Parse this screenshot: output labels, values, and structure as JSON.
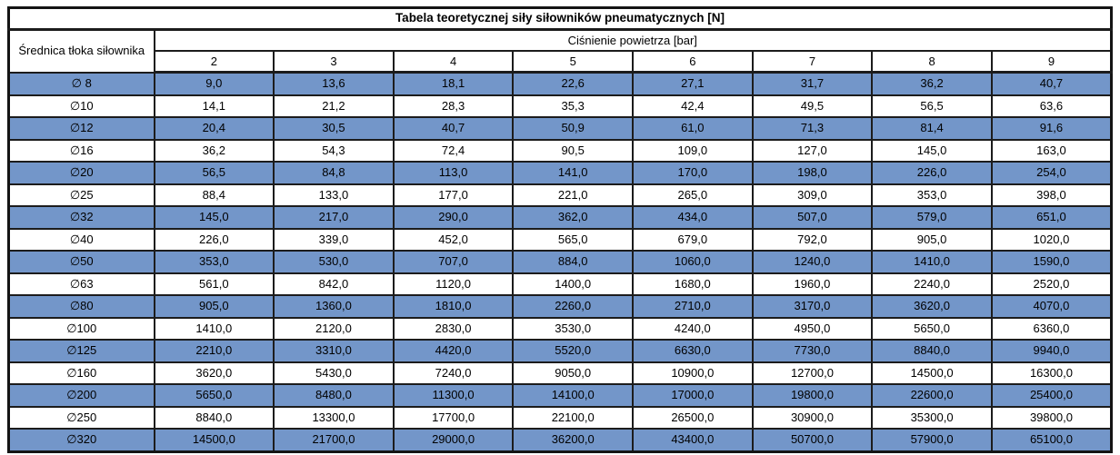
{
  "table": {
    "title": "Tabela teoretycznej siły siłowników pneumatycznych [N]",
    "row_header": "Średnica tłoka siłownika",
    "col_group_header": "Ciśnienie powietrza [bar]",
    "pressure_columns": [
      "2",
      "3",
      "4",
      "5",
      "6",
      "7",
      "8",
      "9"
    ],
    "rows": [
      {
        "diameter": "∅ 8",
        "highlight": true,
        "values": [
          "9,0",
          "13,6",
          "18,1",
          "22,6",
          "27,1",
          "31,7",
          "36,2",
          "40,7"
        ]
      },
      {
        "diameter": "∅10",
        "highlight": false,
        "values": [
          "14,1",
          "21,2",
          "28,3",
          "35,3",
          "42,4",
          "49,5",
          "56,5",
          "63,6"
        ]
      },
      {
        "diameter": "∅12",
        "highlight": true,
        "values": [
          "20,4",
          "30,5",
          "40,7",
          "50,9",
          "61,0",
          "71,3",
          "81,4",
          "91,6"
        ]
      },
      {
        "diameter": "∅16",
        "highlight": false,
        "values": [
          "36,2",
          "54,3",
          "72,4",
          "90,5",
          "109,0",
          "127,0",
          "145,0",
          "163,0"
        ]
      },
      {
        "diameter": "∅20",
        "highlight": true,
        "values": [
          "56,5",
          "84,8",
          "113,0",
          "141,0",
          "170,0",
          "198,0",
          "226,0",
          "254,0"
        ]
      },
      {
        "diameter": "∅25",
        "highlight": false,
        "values": [
          "88,4",
          "133,0",
          "177,0",
          "221,0",
          "265,0",
          "309,0",
          "353,0",
          "398,0"
        ]
      },
      {
        "diameter": "∅32",
        "highlight": true,
        "values": [
          "145,0",
          "217,0",
          "290,0",
          "362,0",
          "434,0",
          "507,0",
          "579,0",
          "651,0"
        ]
      },
      {
        "diameter": "∅40",
        "highlight": false,
        "values": [
          "226,0",
          "339,0",
          "452,0",
          "565,0",
          "679,0",
          "792,0",
          "905,0",
          "1020,0"
        ]
      },
      {
        "diameter": "∅50",
        "highlight": true,
        "values": [
          "353,0",
          "530,0",
          "707,0",
          "884,0",
          "1060,0",
          "1240,0",
          "1410,0",
          "1590,0"
        ]
      },
      {
        "diameter": "∅63",
        "highlight": false,
        "values": [
          "561,0",
          "842,0",
          "1120,0",
          "1400,0",
          "1680,0",
          "1960,0",
          "2240,0",
          "2520,0"
        ]
      },
      {
        "diameter": "∅80",
        "highlight": true,
        "values": [
          "905,0",
          "1360,0",
          "1810,0",
          "2260,0",
          "2710,0",
          "3170,0",
          "3620,0",
          "4070,0"
        ]
      },
      {
        "diameter": "∅100",
        "highlight": false,
        "values": [
          "1410,0",
          "2120,0",
          "2830,0",
          "3530,0",
          "4240,0",
          "4950,0",
          "5650,0",
          "6360,0"
        ]
      },
      {
        "diameter": "∅125",
        "highlight": true,
        "values": [
          "2210,0",
          "3310,0",
          "4420,0",
          "5520,0",
          "6630,0",
          "7730,0",
          "8840,0",
          "9940,0"
        ]
      },
      {
        "diameter": "∅160",
        "highlight": false,
        "values": [
          "3620,0",
          "5430,0",
          "7240,0",
          "9050,0",
          "10900,0",
          "12700,0",
          "14500,0",
          "16300,0"
        ]
      },
      {
        "diameter": "∅200",
        "highlight": true,
        "values": [
          "5650,0",
          "8480,0",
          "11300,0",
          "14100,0",
          "17000,0",
          "19800,0",
          "22600,0",
          "25400,0"
        ]
      },
      {
        "diameter": "∅250",
        "highlight": false,
        "values": [
          "8840,0",
          "13300,0",
          "17700,0",
          "22100,0",
          "26500,0",
          "30900,0",
          "35300,0",
          "39800,0"
        ]
      },
      {
        "diameter": "∅320",
        "highlight": true,
        "values": [
          "14500,0",
          "21700,0",
          "29000,0",
          "36200,0",
          "43400,0",
          "50700,0",
          "57900,0",
          "65100,0"
        ]
      }
    ],
    "colors": {
      "highlight_row": "#7396c9",
      "border": "#1c1c1c",
      "background": "#ffffff",
      "text": "#000000"
    }
  }
}
